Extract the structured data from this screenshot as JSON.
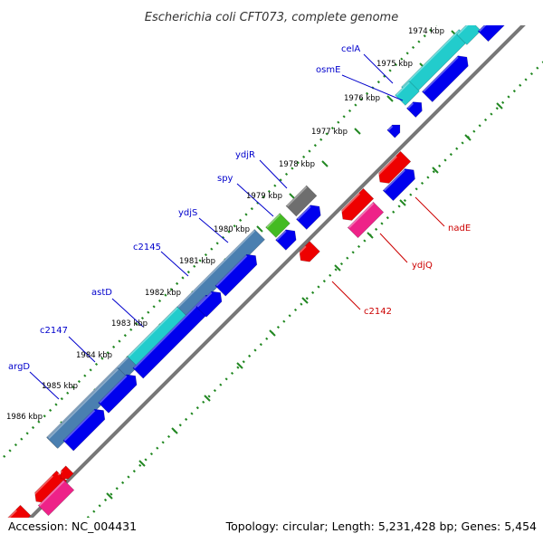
{
  "title": "Escherichia coli CFT073, complete genome",
  "footer": {
    "accession": "Accession: NC_004431",
    "stats": "Topology: circular; Length: 5,231,428 bp; Genes: 5,454"
  },
  "ticks": [
    {
      "label": "1974 kbp"
    },
    {
      "label": "1975 kbp"
    },
    {
      "label": "1976 kbp"
    },
    {
      "label": "1977 kbp"
    },
    {
      "label": "1978 kbp"
    },
    {
      "label": "1979 kbp"
    },
    {
      "label": "1980 kbp"
    },
    {
      "label": "1981 kbp"
    },
    {
      "label": "1982 kbp"
    },
    {
      "label": "1983 kbp"
    },
    {
      "label": "1984 kbp"
    },
    {
      "label": "1985 kbp"
    },
    {
      "label": "1986 kbp"
    }
  ],
  "forward_gene_labels": [
    "celA",
    "osmE",
    "ydjR",
    "spy",
    "ydjS",
    "c2145",
    "astD",
    "c2147",
    "argD"
  ],
  "reverse_gene_labels": [
    "nadE",
    "ydjQ",
    "c2142"
  ],
  "colors": {
    "forward_cds": "#0000ee",
    "reverse_cds": "#ee0000",
    "reverse_rna": "#ee2288",
    "cog_steelblue": "#4a7fb0",
    "cog_cyan": "#22cccc",
    "cog_gray": "#6e6e6e",
    "cog_green": "#44bb22",
    "backbone": "#777777",
    "ruler_dots": "#228822",
    "forward_label_line": "#0000cc",
    "reverse_label_line": "#cc0000"
  }
}
